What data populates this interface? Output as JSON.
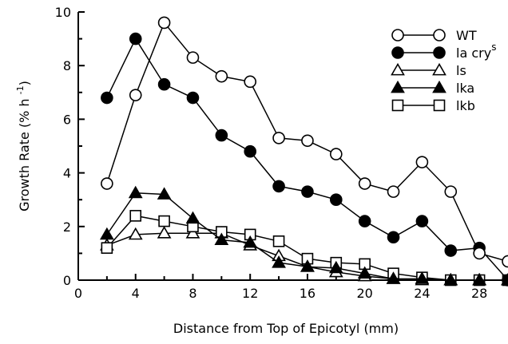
{
  "chart_data": {
    "type": "line",
    "title": "",
    "xlabel": "Distance from Top of Epicotyl  (mm)",
    "ylabel": "Growth Rate (% h ",
    "ylabel_superscript": "-1",
    "ylabel_close": ")",
    "xlim": [
      0,
      30
    ],
    "ylim": [
      0,
      10
    ],
    "xticks": [
      0,
      4,
      8,
      12,
      16,
      20,
      24,
      28
    ],
    "yticks": [
      0,
      2,
      4,
      6,
      8,
      10
    ],
    "grid": false,
    "legend_position": "top-right",
    "x": [
      2,
      4,
      6,
      8,
      10,
      12,
      14,
      16,
      18,
      20,
      22,
      24,
      26,
      28,
      30
    ],
    "series": [
      {
        "name": "WT",
        "marker": "circle-open",
        "values": [
          3.6,
          6.9,
          9.6,
          8.3,
          7.6,
          7.4,
          5.3,
          5.2,
          4.7,
          3.6,
          3.3,
          4.4,
          3.3,
          1.0,
          0.7
        ]
      },
      {
        "name": "la cry",
        "name_superscript": "s",
        "marker": "circle-filled",
        "values": [
          6.8,
          9.0,
          7.3,
          6.8,
          5.4,
          4.8,
          3.5,
          3.3,
          3.0,
          2.2,
          1.6,
          2.2,
          1.1,
          1.2,
          0.0
        ]
      },
      {
        "name": "ls",
        "marker": "triangle-open",
        "values": [
          1.3,
          1.7,
          1.75,
          1.75,
          1.75,
          1.3,
          0.9,
          0.5,
          0.3,
          0.15,
          0.05,
          0.0,
          0.0,
          0.0,
          0.0
        ]
      },
      {
        "name": "lka",
        "marker": "triangle-filled",
        "values": [
          1.7,
          3.25,
          3.2,
          2.3,
          1.5,
          1.4,
          0.65,
          0.5,
          0.45,
          0.25,
          0.05,
          0.05,
          0.0,
          0.0,
          0.0
        ]
      },
      {
        "name": "lkb",
        "marker": "square-open",
        "values": [
          1.2,
          2.4,
          2.2,
          2.0,
          1.8,
          1.7,
          1.45,
          0.8,
          0.65,
          0.6,
          0.25,
          0.1,
          0.0,
          0.0,
          0.0
        ]
      }
    ]
  }
}
